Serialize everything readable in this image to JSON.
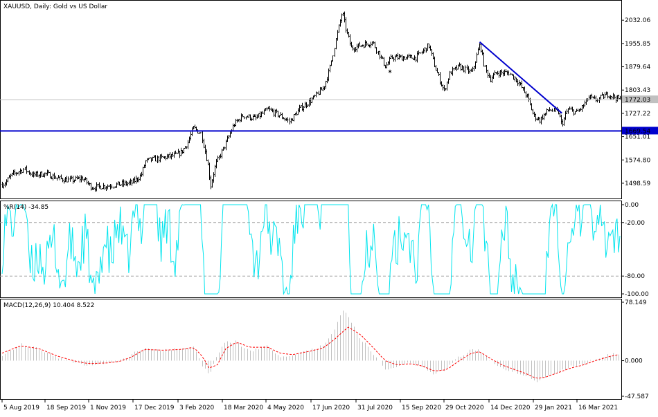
{
  "chart_data": {
    "type": "candlestick",
    "window_title": "XAUUSD, Daily:  Gold vs US Dollar",
    "x_tick_labels": [
      "5 Aug 2019",
      "18 Sep 2019",
      "1 Nov 2019",
      "17 Dec 2019",
      "3 Feb 2020",
      "18 Mar 2020",
      "4 May 2020",
      "17 Jun 2020",
      "31 Jul 2020",
      "15 Sep 2020",
      "29 Oct 2020",
      "14 Dec 2020",
      "29 Jan 2021",
      "16 Mar 2021"
    ],
    "price": {
      "y_ticks": [
        "2032.06",
        "1955.85",
        "1879.64",
        "1803.43",
        "1727.22",
        "1651.01",
        "1574.80",
        "1498.59"
      ],
      "y_range": [
        1460,
        2080
      ],
      "current_price": 1772.03,
      "current_price_label": "1772.03",
      "support_level": 1669.54,
      "support_label": "1669.54",
      "trendline": [
        [
          0.773,
          1961
        ],
        [
          0.906,
          1728
        ]
      ],
      "marker": [
        0.627,
        1864
      ],
      "anchors": [
        [
          0,
          1495
        ],
        [
          0.005,
          1500
        ],
        [
          0.015,
          1525
        ],
        [
          0.035,
          1545
        ],
        [
          0.05,
          1525
        ],
        [
          0.07,
          1530
        ],
        [
          0.09,
          1515
        ],
        [
          0.11,
          1508
        ],
        [
          0.13,
          1515
        ],
        [
          0.145,
          1485
        ],
        [
          0.17,
          1490
        ],
        [
          0.19,
          1495
        ],
        [
          0.21,
          1500
        ],
        [
          0.225,
          1525
        ],
        [
          0.232,
          1570
        ],
        [
          0.24,
          1575
        ],
        [
          0.255,
          1580
        ],
        [
          0.28,
          1590
        ],
        [
          0.29,
          1600
        ],
        [
          0.3,
          1630
        ],
        [
          0.31,
          1680
        ],
        [
          0.322,
          1660
        ],
        [
          0.332,
          1565
        ],
        [
          0.337,
          1490
        ],
        [
          0.345,
          1560
        ],
        [
          0.36,
          1620
        ],
        [
          0.375,
          1690
        ],
        [
          0.39,
          1720
        ],
        [
          0.41,
          1710
        ],
        [
          0.43,
          1740
        ],
        [
          0.45,
          1720
        ],
        [
          0.465,
          1700
        ],
        [
          0.48,
          1740
        ],
        [
          0.5,
          1770
        ],
        [
          0.52,
          1810
        ],
        [
          0.53,
          1870
        ],
        [
          0.54,
          1970
        ],
        [
          0.55,
          2060
        ],
        [
          0.555,
          2010
        ],
        [
          0.565,
          1940
        ],
        [
          0.58,
          1950
        ],
        [
          0.6,
          1960
        ],
        [
          0.62,
          1880
        ],
        [
          0.63,
          1910
        ],
        [
          0.65,
          1910
        ],
        [
          0.67,
          1910
        ],
        [
          0.69,
          1950
        ],
        [
          0.7,
          1880
        ],
        [
          0.715,
          1800
        ],
        [
          0.725,
          1860
        ],
        [
          0.74,
          1880
        ],
        [
          0.76,
          1860
        ],
        [
          0.773,
          1955
        ],
        [
          0.78,
          1880
        ],
        [
          0.79,
          1840
        ],
        [
          0.8,
          1860
        ],
        [
          0.82,
          1860
        ],
        [
          0.835,
          1830
        ],
        [
          0.85,
          1780
        ],
        [
          0.86,
          1720
        ],
        [
          0.87,
          1705
        ],
        [
          0.885,
          1740
        ],
        [
          0.9,
          1730
        ],
        [
          0.905,
          1690
        ],
        [
          0.915,
          1740
        ],
        [
          0.93,
          1730
        ],
        [
          0.94,
          1750
        ],
        [
          0.95,
          1780
        ],
        [
          0.96,
          1770
        ],
        [
          0.98,
          1790
        ],
        [
          1.0,
          1772
        ]
      ]
    },
    "williams_r": {
      "label": "%R(14) -34.85",
      "current": -34.85,
      "y_ticks": [
        "0.00",
        "-20.00",
        "-80.00",
        "-100.00"
      ],
      "levels": [
        -20,
        -80
      ],
      "y_range": [
        -100,
        0
      ]
    },
    "macd": {
      "label": "MACD(12,26,9) 10.404 8.522",
      "macd_value": 10.404,
      "signal_value": 8.522,
      "y_ticks": [
        "78.149",
        "0.000",
        "-47.587"
      ],
      "y_range": [
        -47.587,
        78.149
      ],
      "hist_anchors": [
        [
          0,
          8
        ],
        [
          0.03,
          22
        ],
        [
          0.06,
          16
        ],
        [
          0.09,
          5
        ],
        [
          0.12,
          -3
        ],
        [
          0.14,
          -6
        ],
        [
          0.17,
          -2
        ],
        [
          0.19,
          -1
        ],
        [
          0.21,
          8
        ],
        [
          0.23,
          18
        ],
        [
          0.26,
          14
        ],
        [
          0.29,
          15
        ],
        [
          0.31,
          20
        ],
        [
          0.325,
          -10
        ],
        [
          0.335,
          -18
        ],
        [
          0.345,
          5
        ],
        [
          0.36,
          25
        ],
        [
          0.38,
          25
        ],
        [
          0.4,
          12
        ],
        [
          0.43,
          20
        ],
        [
          0.45,
          5
        ],
        [
          0.47,
          8
        ],
        [
          0.5,
          15
        ],
        [
          0.52,
          20
        ],
        [
          0.54,
          45
        ],
        [
          0.55,
          70
        ],
        [
          0.565,
          50
        ],
        [
          0.58,
          30
        ],
        [
          0.6,
          10
        ],
        [
          0.62,
          -12
        ],
        [
          0.64,
          -8
        ],
        [
          0.66,
          -2
        ],
        [
          0.68,
          -10
        ],
        [
          0.7,
          -18
        ],
        [
          0.72,
          -10
        ],
        [
          0.74,
          5
        ],
        [
          0.76,
          15
        ],
        [
          0.773,
          14
        ],
        [
          0.79,
          0
        ],
        [
          0.81,
          -10
        ],
        [
          0.83,
          -15
        ],
        [
          0.85,
          -20
        ],
        [
          0.865,
          -28
        ],
        [
          0.88,
          -22
        ],
        [
          0.9,
          -15
        ],
        [
          0.92,
          -8
        ],
        [
          0.94,
          -5
        ],
        [
          0.96,
          2
        ],
        [
          0.98,
          8
        ],
        [
          1.0,
          10
        ]
      ],
      "signal_anchors": [
        [
          0,
          10
        ],
        [
          0.03,
          20
        ],
        [
          0.06,
          16
        ],
        [
          0.09,
          6
        ],
        [
          0.12,
          -1
        ],
        [
          0.14,
          -4
        ],
        [
          0.17,
          -3
        ],
        [
          0.19,
          -1
        ],
        [
          0.21,
          5
        ],
        [
          0.23,
          15
        ],
        [
          0.26,
          14
        ],
        [
          0.29,
          15
        ],
        [
          0.31,
          18
        ],
        [
          0.325,
          5
        ],
        [
          0.335,
          -10
        ],
        [
          0.35,
          -5
        ],
        [
          0.36,
          15
        ],
        [
          0.38,
          25
        ],
        [
          0.4,
          18
        ],
        [
          0.43,
          18
        ],
        [
          0.45,
          10
        ],
        [
          0.47,
          8
        ],
        [
          0.5,
          13
        ],
        [
          0.52,
          17
        ],
        [
          0.54,
          30
        ],
        [
          0.56,
          45
        ],
        [
          0.58,
          35
        ],
        [
          0.6,
          18
        ],
        [
          0.62,
          0
        ],
        [
          0.64,
          -6
        ],
        [
          0.66,
          -4
        ],
        [
          0.68,
          -7
        ],
        [
          0.7,
          -14
        ],
        [
          0.72,
          -12
        ],
        [
          0.74,
          0
        ],
        [
          0.76,
          10
        ],
        [
          0.773,
          12
        ],
        [
          0.79,
          3
        ],
        [
          0.81,
          -6
        ],
        [
          0.83,
          -12
        ],
        [
          0.85,
          -18
        ],
        [
          0.865,
          -24
        ],
        [
          0.88,
          -22
        ],
        [
          0.9,
          -16
        ],
        [
          0.92,
          -10
        ],
        [
          0.94,
          -6
        ],
        [
          0.96,
          0
        ],
        [
          0.98,
          5
        ],
        [
          1.0,
          8.5
        ]
      ]
    },
    "colors": {
      "price_line": "#000000",
      "support_line": "#0000cd",
      "trend_line": "#0000cd",
      "current_price_line": "#c0c0c0",
      "williams_line": "#00e5ee",
      "level_line": "#a0a0a0",
      "macd_hist": "#c0c0c0",
      "macd_signal": "#ff0000",
      "marker": "#ff0000"
    }
  }
}
